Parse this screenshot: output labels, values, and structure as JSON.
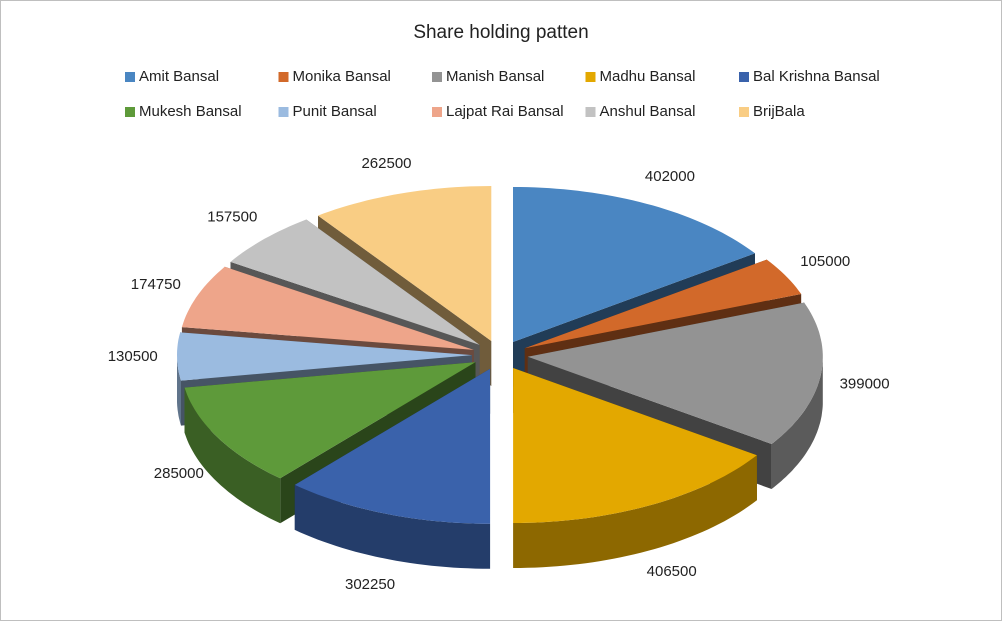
{
  "chart_data": {
    "type": "pie3d",
    "title": "Share holding patten",
    "categories": [
      "Amit Bansal",
      "Monika Bansal",
      "Manish Bansal",
      "Madhu Bansal",
      "Bal Krishna Bansal",
      "Mukesh Bansal",
      "Punit Bansal",
      "Lajpat Rai Bansal",
      "Anshul Bansal",
      "BrijBala"
    ],
    "values": [
      402000,
      105000,
      399000,
      406500,
      302250,
      285000,
      130500,
      174750,
      157500,
      262500
    ],
    "colors": [
      "#4a86c2",
      "#d2692a",
      "#939393",
      "#e3a800",
      "#3a62ab",
      "#5e9a3a",
      "#9bbbe0",
      "#eea58a",
      "#c2c2c2",
      "#f9cd84"
    ],
    "legend": "top"
  }
}
